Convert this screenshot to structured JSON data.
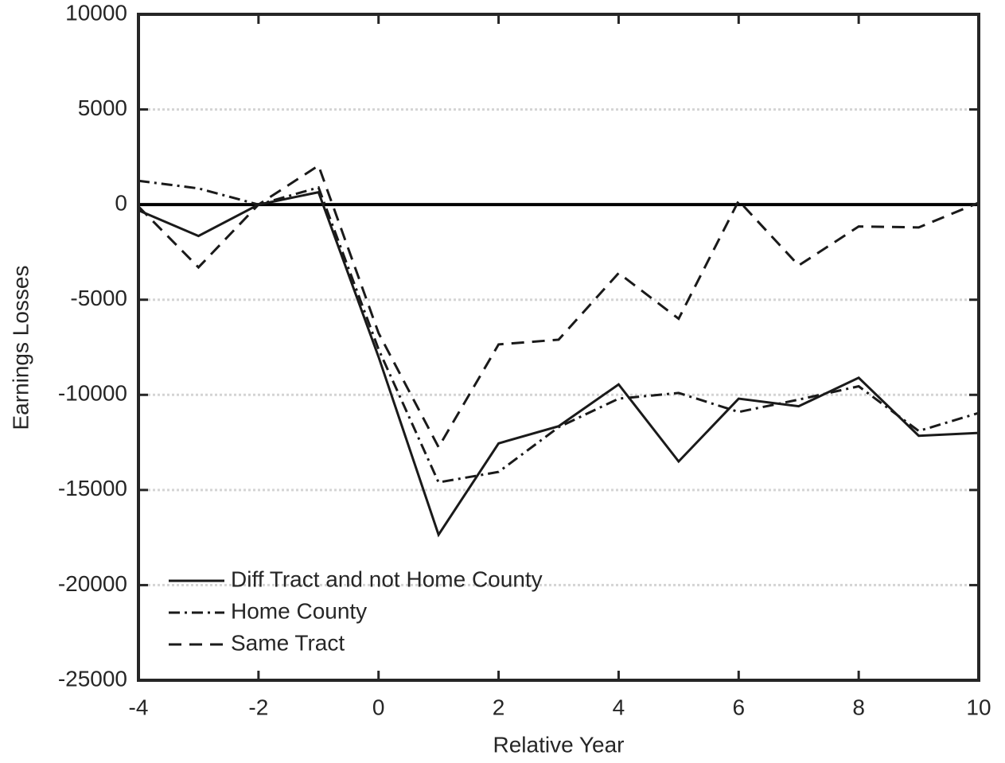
{
  "chart_data": {
    "type": "line",
    "x_label": "Relative Year",
    "y_label": "Earnings Losses",
    "x": [
      -4,
      -3,
      -2,
      -1,
      0,
      1,
      2,
      3,
      4,
      5,
      6,
      7,
      8,
      9,
      10
    ],
    "series": [
      {
        "name": "Diff Tract and not Home County",
        "color": "#1a1a1a",
        "linestyle": "solid",
        "values": [
          -300,
          -1650,
          0,
          650,
          -8000,
          -17350,
          -12550,
          -11650,
          -9450,
          -13500,
          -10200,
          -10600,
          -9100,
          -12150,
          -12000
        ]
      },
      {
        "name": "Home County",
        "color": "#1a1a1a",
        "linestyle": "dashdot",
        "values": [
          1250,
          850,
          0,
          900,
          -7600,
          -14600,
          -14050,
          -11700,
          -10200,
          -9900,
          -10900,
          -10250,
          -9550,
          -11900,
          -10950
        ]
      },
      {
        "name": "Same Tract",
        "color": "#1a1a1a",
        "linestyle": "dashed",
        "values": [
          -100,
          -3300,
          0,
          2050,
          -6750,
          -12750,
          -7350,
          -7100,
          -3600,
          -6000,
          200,
          -3200,
          -1150,
          -1200,
          100
        ]
      }
    ],
    "xlim": [
      -4,
      10
    ],
    "xticks": [
      -4,
      -2,
      0,
      2,
      4,
      6,
      8,
      10
    ],
    "ylim": [
      -25000,
      10000
    ],
    "yticks": [
      -25000,
      -20000,
      -15000,
      -10000,
      -5000,
      0,
      5000,
      10000
    ],
    "grid": true,
    "zero_line": true,
    "legend": "lower-left"
  }
}
